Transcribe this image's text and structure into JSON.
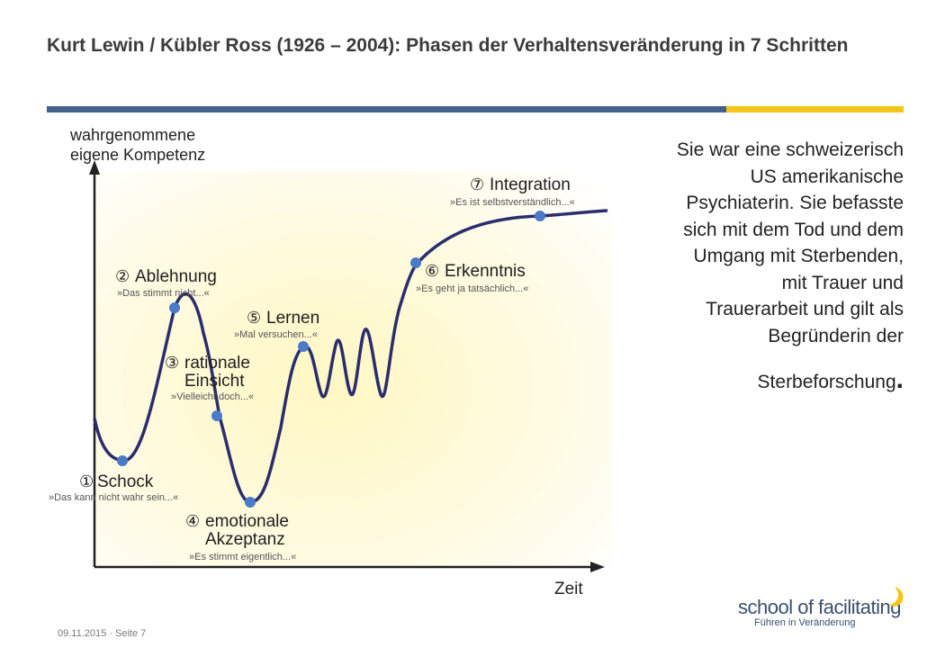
{
  "title": "Kurt Lewin / Kübler Ross (1926 – 2004): Phasen der Verhaltensveränderung in 7 Schritten",
  "colors": {
    "blue_bar": "#44608c",
    "yellow_bar": "#f5c518",
    "curve": "#2a2d6e",
    "point": "#4a7ac8"
  },
  "figure": {
    "y_axis_label_1": "wahrgenommene",
    "y_axis_label_2": "eigene Kompetenz",
    "x_axis_label": "Zeit",
    "phases": [
      {
        "num": "①",
        "name": "Schock",
        "name2": "",
        "quote": "»Das kann nicht wahr sein...«"
      },
      {
        "num": "②",
        "name": "Ablehnung",
        "name2": "",
        "quote": "»Das stimmt nicht...«"
      },
      {
        "num": "③",
        "name": "rationale",
        "name2": "Einsicht",
        "quote": "»Vielleicht doch...«"
      },
      {
        "num": "④",
        "name": "emotionale",
        "name2": "Akzeptanz",
        "quote": "»Es stimmt eigentlich...«"
      },
      {
        "num": "⑤",
        "name": "Lernen",
        "name2": "",
        "quote": "»Mal versuchen...«"
      },
      {
        "num": "⑥",
        "name": "Erkenntnis",
        "name2": "",
        "quote": "»Es geht ja tatsächlich...«"
      },
      {
        "num": "⑦",
        "name": "Integration",
        "name2": "",
        "quote": "»Es ist selbstverständlich...«"
      }
    ]
  },
  "side_text": {
    "body": "Sie war eine schweizerisch US amerikanische Psychiaterin. Sie befasste sich mit dem Tod und dem Umgang mit Sterbenden, mit Trauer und Trauerarbeit und gilt als Begründerin der",
    "last_word": "Sterbeforschung",
    "period": "."
  },
  "footer": {
    "date_page": "09.11.2015 · Seite 7"
  },
  "logo": {
    "main": "school of facilitating",
    "sub": "Führen in Veränderung"
  }
}
